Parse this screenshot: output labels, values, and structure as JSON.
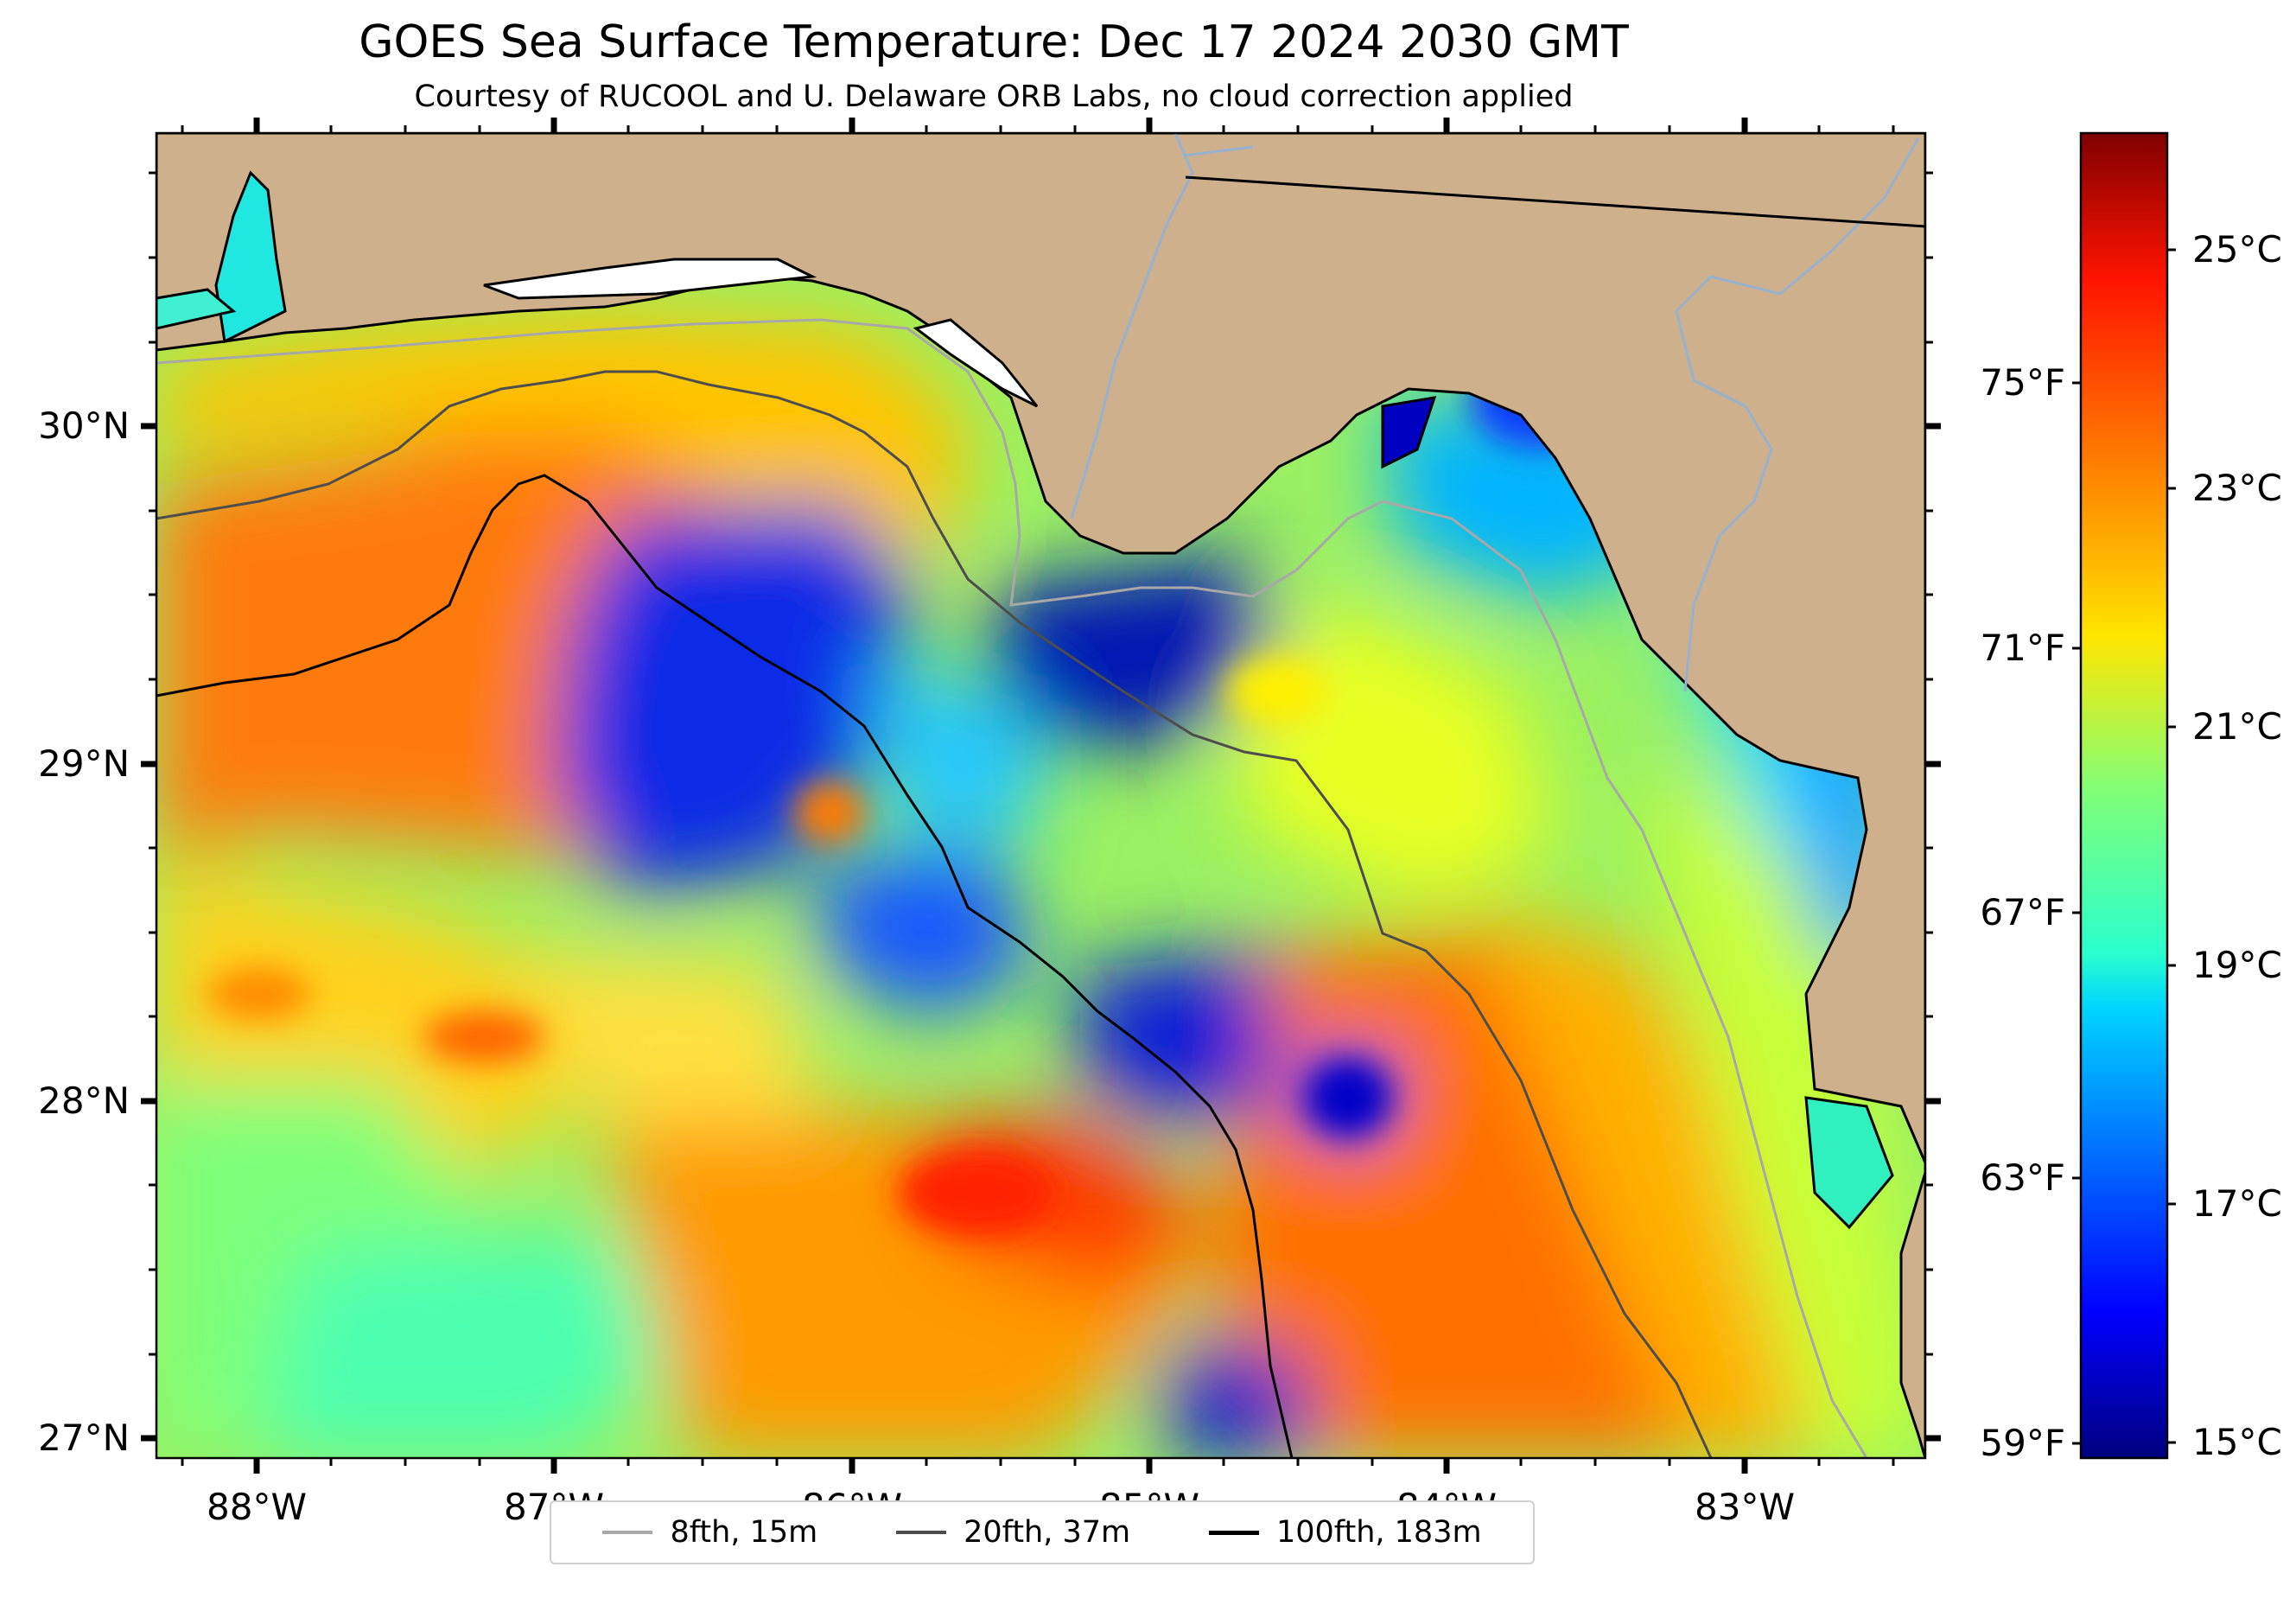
{
  "title": "GOES Sea Surface Temperature: Dec 17 2024 2030 GMT",
  "subtitle": "Courtesy of RUCOOL and U. Delaware ORB Labs, no cloud correction applied",
  "map": {
    "latitude_labels": [
      "30°N",
      "29°N",
      "28°N",
      "27°N"
    ],
    "longitude_labels": [
      "88°W",
      "87°W",
      "86°W",
      "85°W",
      "84°W",
      "83°W"
    ],
    "land_color": "#cfb08c",
    "coast_color": "#000000",
    "river_color": "#97b2d0",
    "features": [
      "land",
      "coastline",
      "rivers",
      "state-border",
      "bathymetry-contours",
      "sst-field"
    ]
  },
  "colorbar": {
    "colormap": "jet",
    "fahrenheit_labels": [
      "75°F",
      "71°F",
      "67°F",
      "63°F",
      "59°F"
    ],
    "celsius_labels": [
      "25°C",
      "23°C",
      "21°C",
      "19°C",
      "17°C",
      "15°C"
    ],
    "range_celsius": [
      14.8,
      26
    ]
  },
  "legend": {
    "items": [
      {
        "label": "8fth, 15m",
        "color": "#a8a8a8"
      },
      {
        "label": "20fth, 37m",
        "color": "#4d4d4d"
      },
      {
        "label": "100fth, 183m",
        "color": "#000000"
      }
    ]
  }
}
